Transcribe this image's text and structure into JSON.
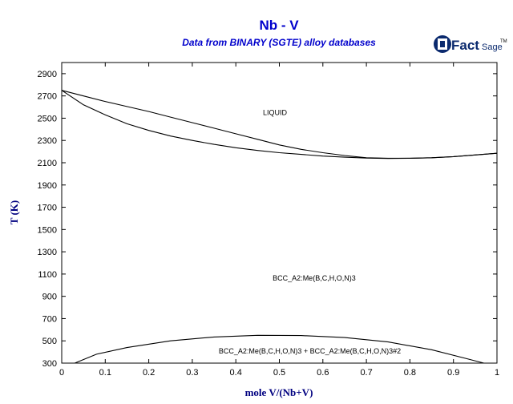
{
  "chart_data": {
    "type": "line",
    "title": "Nb - V",
    "subtitle": "Data from BINARY (SGTE) alloy databases",
    "xlabel": "mole V/(Nb+V)",
    "ylabel": "T (K)",
    "xlim": [
      0,
      1
    ],
    "ylim": [
      300,
      3000
    ],
    "x_ticks": [
      "0",
      "0.1",
      "0.2",
      "0.3",
      "0.4",
      "0.5",
      "0.6",
      "0.7",
      "0.8",
      "0.9",
      "1"
    ],
    "y_ticks": [
      "300",
      "500",
      "700",
      "900",
      "1100",
      "1300",
      "1500",
      "1700",
      "1900",
      "2100",
      "2300",
      "2500",
      "2700",
      "2900"
    ],
    "grid": false,
    "series": [
      {
        "x": [
          0,
          0.05,
          0.1,
          0.15,
          0.2,
          0.25,
          0.3,
          0.35,
          0.4,
          0.45,
          0.5,
          0.55,
          0.6,
          0.65,
          0.7,
          0.75,
          0.8,
          0.85,
          0.9,
          0.95,
          1.0
        ],
        "y": [
          2750,
          2700,
          2650,
          2605,
          2560,
          2510,
          2460,
          2410,
          2360,
          2310,
          2260,
          2220,
          2190,
          2165,
          2145,
          2140,
          2140,
          2145,
          2155,
          2170,
          2185
        ]
      },
      {
        "x": [
          0,
          0.05,
          0.1,
          0.15,
          0.2,
          0.25,
          0.3,
          0.35,
          0.4,
          0.45,
          0.5,
          0.55,
          0.6,
          0.65,
          0.7,
          0.75,
          0.8,
          0.85,
          0.9,
          0.95,
          1.0
        ],
        "y": [
          2750,
          2620,
          2530,
          2450,
          2390,
          2340,
          2300,
          2265,
          2235,
          2210,
          2190,
          2175,
          2160,
          2150,
          2142,
          2138,
          2140,
          2145,
          2155,
          2170,
          2185
        ]
      },
      {
        "x": [
          0.03,
          0.08,
          0.15,
          0.25,
          0.35,
          0.45,
          0.55,
          0.65,
          0.75,
          0.85,
          0.93,
          0.97
        ],
        "y": [
          300,
          380,
          440,
          500,
          535,
          550,
          548,
          530,
          490,
          420,
          340,
          300
        ]
      }
    ],
    "annotations": [
      {
        "text": "LIQUID",
        "x": 0.49,
        "y": 2530
      },
      {
        "text": "BCC_A2:Me(B,C,H,O,N)3",
        "x": 0.58,
        "y": 1040
      },
      {
        "text": "BCC_A2:Me(B,C,H,O,N)3 + BCC_A2:Me(B,C,H,O,N)3#2",
        "x": 0.57,
        "y": 385
      }
    ],
    "colors": {
      "title": "#0000cc",
      "axis_label": "#000080",
      "line": "#000000",
      "logo": "#0b2a6e"
    }
  },
  "logo": {
    "main": "Fact",
    "sub": "Sage",
    "mark": "TM"
  }
}
